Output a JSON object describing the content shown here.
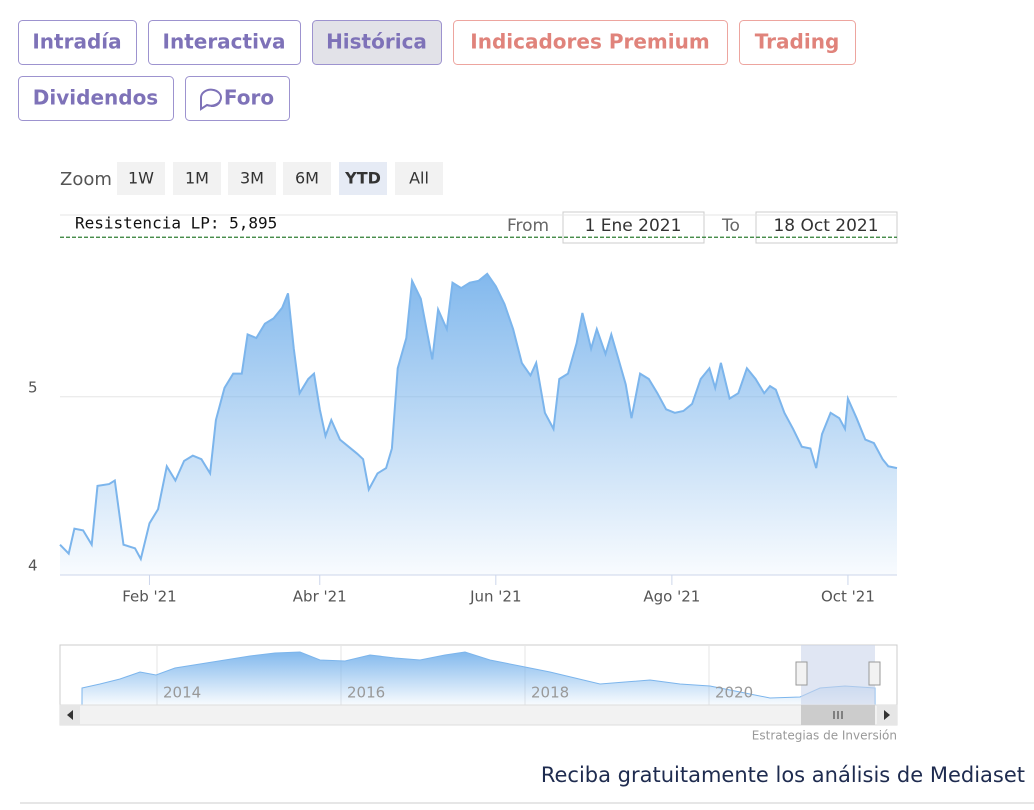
{
  "tabs": [
    {
      "label": "Intradía",
      "style": "purple"
    },
    {
      "label": "Interactiva",
      "style": "purple"
    },
    {
      "label": "Histórica",
      "style": "purple",
      "active": true
    },
    {
      "label": "Indicadores Premium",
      "style": "red"
    },
    {
      "label": "Trading",
      "style": "red"
    },
    {
      "label": "Dividendos",
      "style": "purple"
    },
    {
      "label": "Foro",
      "style": "purple"
    }
  ],
  "zoom": {
    "label": "Zoom",
    "buttons": [
      "1W",
      "1M",
      "3M",
      "6M",
      "YTD",
      "All"
    ],
    "active": 4
  },
  "range": {
    "from_label": "From",
    "from": "1 Ene 2021",
    "to_label": "To",
    "to": "18 Oct 2021"
  },
  "chart_data": {
    "type": "area",
    "x": [
      0,
      3,
      5,
      8,
      11,
      13,
      17,
      19,
      22,
      26,
      28,
      31,
      34,
      37,
      40,
      43,
      46,
      49,
      52,
      54,
      57,
      60,
      63,
      65,
      68,
      71,
      74,
      77,
      79,
      81,
      83,
      86,
      88,
      90,
      92,
      94,
      97,
      100,
      103,
      105,
      107,
      110,
      113,
      115,
      117,
      120,
      122,
      125,
      127,
      129,
      131,
      134,
      136,
      139,
      142,
      145,
      148,
      151,
      154,
      157,
      160,
      163,
      165,
      168,
      171,
      173,
      176,
      179,
      181,
      184,
      186,
      189,
      191,
      193,
      196,
      198,
      201,
      204,
      207,
      210,
      213,
      216,
      219,
      222,
      225,
      227,
      229,
      232,
      235,
      238,
      241,
      244,
      246,
      248,
      251,
      254,
      257,
      260,
      262,
      264,
      267,
      270,
      272,
      273,
      276,
      279,
      282,
      285,
      287,
      290
    ],
    "values": [
      4.17,
      4.12,
      4.26,
      4.25,
      4.17,
      4.5,
      4.51,
      4.53,
      4.17,
      4.15,
      4.09,
      4.29,
      4.37,
      4.61,
      4.53,
      4.64,
      4.67,
      4.65,
      4.57,
      4.87,
      5.05,
      5.13,
      5.13,
      5.35,
      5.33,
      5.41,
      5.44,
      5.5,
      5.58,
      5.27,
      5.02,
      5.1,
      5.13,
      4.93,
      4.78,
      4.87,
      4.76,
      4.72,
      4.68,
      4.65,
      4.48,
      4.57,
      4.6,
      4.71,
      5.16,
      5.33,
      5.65,
      5.55,
      5.38,
      5.21,
      5.49,
      5.38,
      5.64,
      5.61,
      5.64,
      5.65,
      5.69,
      5.62,
      5.52,
      5.38,
      5.19,
      5.12,
      5.19,
      4.91,
      4.82,
      5.1,
      5.13,
      5.3,
      5.47,
      5.27,
      5.38,
      5.24,
      5.35,
      5.24,
      5.07,
      4.88,
      5.13,
      5.1,
      5.02,
      4.93,
      4.91,
      4.92,
      4.96,
      5.1,
      5.16,
      5.05,
      5.19,
      4.99,
      5.02,
      5.16,
      5.1,
      5.02,
      5.06,
      5.04,
      4.91,
      4.82,
      4.72,
      4.71,
      4.6,
      4.79,
      4.91,
      4.88,
      4.82,
      4.99,
      4.88,
      4.76,
      4.74,
      4.65,
      4.61,
      4.6
    ],
    "color": "#7cb5ec",
    "xlim": [
      0,
      290
    ],
    "xticks": [
      {
        "value": 31,
        "label": "Feb '21"
      },
      {
        "value": 90,
        "label": "Abr '21"
      },
      {
        "value": 151,
        "label": "Jun '21"
      },
      {
        "value": 212,
        "label": "Ago '21"
      },
      {
        "value": 273,
        "label": "Oct '21"
      }
    ],
    "ylim": [
      4,
      6.02
    ],
    "yticks": [
      4,
      5
    ],
    "grid": true,
    "annotation": {
      "label": "Resistencia LP: 5,895",
      "value": 5.895,
      "color": "#2e7d32"
    }
  },
  "navigator": {
    "labels": [
      "2014",
      "2016",
      "2018",
      "2020"
    ]
  },
  "credits": "Estrategias de Inversión",
  "footer": "Reciba gratuitamente los análisis de Mediaset"
}
